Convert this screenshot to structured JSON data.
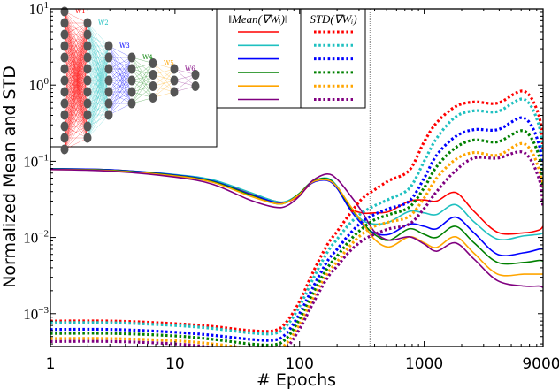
{
  "chart_data": {
    "type": "line",
    "xscale": "log",
    "yscale": "log",
    "xlabel": "# Epochs",
    "ylabel": "Normalized Mean and STD",
    "xlim": [
      1,
      9000
    ],
    "ylim": [
      0.00037,
      10
    ],
    "xticks": [
      1,
      10,
      100,
      1000,
      9000
    ],
    "xtick_labels": [
      "1",
      "10",
      "100",
      "1000",
      "9000"
    ],
    "yticks": [
      0.001,
      0.01,
      0.1,
      1,
      10
    ],
    "ytick_labels": [
      {
        "base": "10",
        "exp": "−3"
      },
      {
        "base": "10",
        "exp": "−2"
      },
      {
        "base": "10",
        "exp": "−1"
      },
      {
        "base": "10",
        "exp": "0"
      },
      {
        "base": "10",
        "exp": "1"
      }
    ],
    "vline_x": 370,
    "legend": {
      "placement": "top-center",
      "mean_header": "‖Mean(∇Wᵢ)‖",
      "std_header": "STD(∇Wᵢ)"
    },
    "inset": {
      "placement": "top-left",
      "layer_labels": [
        "W1",
        "W2",
        "W3",
        "W4",
        "W5",
        "W6"
      ],
      "layer_sizes": [
        13,
        11,
        7,
        5,
        4,
        3,
        2
      ]
    },
    "x": [
      1,
      3.16,
      10,
      20,
      40,
      63,
      79,
      100,
      126,
      166,
      200,
      251,
      316,
      398,
      525,
      759,
      1000,
      1259,
      1778,
      2512,
      3890,
      6310,
      8318,
      9000
    ],
    "series": [
      {
        "name": "Mean W1",
        "kind": "mean",
        "color": "#ff0000",
        "values": [
          0.079,
          0.077,
          0.066,
          0.056,
          0.038,
          0.03,
          0.029,
          0.036,
          0.052,
          0.058,
          0.045,
          0.025,
          0.021,
          0.021,
          0.022,
          0.03,
          0.031,
          0.03,
          0.039,
          0.022,
          0.0117,
          0.0115,
          0.0125,
          0.014
        ]
      },
      {
        "name": "Mean W2",
        "kind": "mean",
        "color": "#1fc0c0",
        "values": [
          0.08,
          0.077,
          0.067,
          0.057,
          0.039,
          0.03,
          0.03,
          0.038,
          0.054,
          0.06,
          0.047,
          0.026,
          0.017,
          0.015,
          0.016,
          0.022,
          0.021,
          0.02,
          0.027,
          0.016,
          0.0095,
          0.0105,
          0.011,
          0.0115
        ]
      },
      {
        "name": "Mean W3",
        "kind": "mean",
        "color": "#0000ff",
        "values": [
          0.08,
          0.077,
          0.066,
          0.055,
          0.037,
          0.029,
          0.029,
          0.037,
          0.052,
          0.056,
          0.044,
          0.024,
          0.015,
          0.0115,
          0.011,
          0.015,
          0.014,
          0.013,
          0.0185,
          0.0115,
          0.006,
          0.0063,
          0.007,
          0.0072
        ]
      },
      {
        "name": "Mean W4",
        "kind": "mean",
        "color": "#008000",
        "values": [
          0.079,
          0.076,
          0.065,
          0.054,
          0.036,
          0.028,
          0.029,
          0.038,
          0.054,
          0.059,
          0.046,
          0.026,
          0.016,
          0.011,
          0.0092,
          0.013,
          0.011,
          0.01,
          0.014,
          0.0085,
          0.0047,
          0.0047,
          0.005,
          0.0049
        ]
      },
      {
        "name": "Mean W5",
        "kind": "mean",
        "color": "#ffa500",
        "values": [
          0.078,
          0.075,
          0.064,
          0.053,
          0.035,
          0.028,
          0.029,
          0.037,
          0.053,
          0.057,
          0.046,
          0.027,
          0.016,
          0.0095,
          0.0075,
          0.0102,
          0.0085,
          0.0074,
          0.0102,
          0.0062,
          0.0033,
          0.0033,
          0.0033,
          0.0033
        ]
      },
      {
        "name": "Mean W6",
        "kind": "mean",
        "color": "#800080",
        "values": [
          0.078,
          0.074,
          0.062,
          0.05,
          0.031,
          0.025,
          0.026,
          0.035,
          0.055,
          0.068,
          0.058,
          0.037,
          0.022,
          0.012,
          0.0092,
          0.0102,
          0.0082,
          0.0066,
          0.0085,
          0.0052,
          0.0027,
          0.0023,
          0.0023,
          0.0022
        ]
      },
      {
        "name": "STD W1",
        "kind": "std",
        "color": "#ff0000",
        "values": [
          0.0008,
          0.0008,
          0.00074,
          0.00068,
          0.0006,
          0.0006,
          0.00079,
          0.00145,
          0.0033,
          0.0079,
          0.012,
          0.02,
          0.032,
          0.042,
          0.056,
          0.076,
          0.18,
          0.32,
          0.52,
          0.6,
          0.58,
          0.83,
          0.4,
          0.14
        ]
      },
      {
        "name": "STD W2",
        "kind": "std",
        "color": "#1fc0c0",
        "values": [
          0.00076,
          0.00076,
          0.0007,
          0.00064,
          0.00056,
          0.00055,
          0.0007,
          0.00125,
          0.0027,
          0.0063,
          0.0095,
          0.015,
          0.021,
          0.026,
          0.032,
          0.044,
          0.1,
          0.2,
          0.38,
          0.46,
          0.45,
          0.65,
          0.3,
          0.1
        ]
      },
      {
        "name": "STD W3",
        "kind": "std",
        "color": "#0000ff",
        "values": [
          0.00062,
          0.00062,
          0.00057,
          0.00052,
          0.00046,
          0.00045,
          0.00056,
          0.001,
          0.0021,
          0.0048,
          0.007,
          0.011,
          0.016,
          0.02,
          0.024,
          0.03,
          0.06,
          0.12,
          0.21,
          0.26,
          0.26,
          0.37,
          0.17,
          0.06
        ]
      },
      {
        "name": "STD W4",
        "kind": "std",
        "color": "#008000",
        "values": [
          0.00055,
          0.00055,
          0.00051,
          0.00046,
          0.0004,
          0.00039,
          0.00048,
          0.00085,
          0.00175,
          0.0039,
          0.0057,
          0.009,
          0.013,
          0.017,
          0.02,
          0.025,
          0.045,
          0.085,
          0.15,
          0.19,
          0.18,
          0.25,
          0.12,
          0.045
        ]
      },
      {
        "name": "STD W5",
        "kind": "std",
        "color": "#ffa500",
        "values": [
          0.00047,
          0.00047,
          0.00044,
          0.0004,
          0.00035,
          0.00034,
          0.00041,
          0.00072,
          0.0015,
          0.0033,
          0.0048,
          0.0076,
          0.011,
          0.014,
          0.016,
          0.019,
          0.033,
          0.06,
          0.105,
          0.13,
          0.12,
          0.17,
          0.08,
          0.03
        ]
      },
      {
        "name": "STD W6",
        "kind": "std",
        "color": "#800080",
        "values": [
          0.00043,
          0.00043,
          0.0004,
          0.00036,
          0.00031,
          0.0003,
          0.00036,
          0.00063,
          0.0013,
          0.0029,
          0.0042,
          0.0065,
          0.009,
          0.011,
          0.013,
          0.015,
          0.024,
          0.04,
          0.075,
          0.11,
          0.11,
          0.13,
          0.06,
          0.025
        ]
      }
    ]
  }
}
